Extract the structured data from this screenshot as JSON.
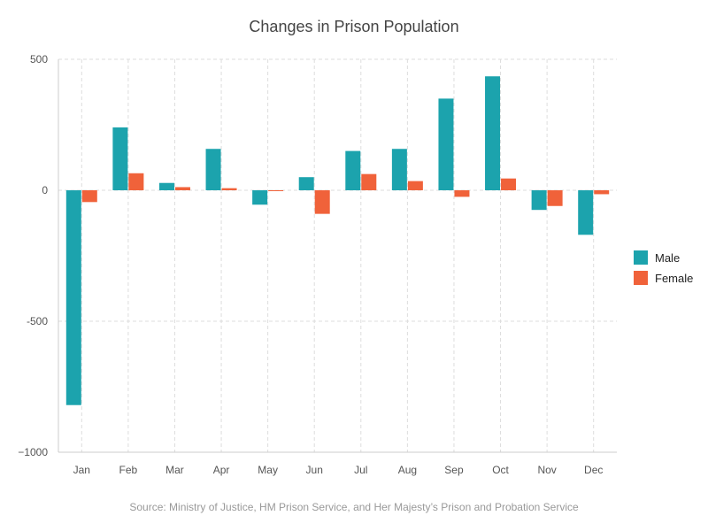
{
  "chart_data": {
    "type": "bar",
    "title": "Changes in Prison Population",
    "categories": [
      "Jan",
      "Feb",
      "Mar",
      "Apr",
      "May",
      "Jun",
      "Jul",
      "Aug",
      "Sep",
      "Oct",
      "Nov",
      "Dec"
    ],
    "series": [
      {
        "name": "Male",
        "color": "#1ca3ad",
        "values": [
          -820,
          240,
          28,
          158,
          -55,
          50,
          150,
          158,
          350,
          435,
          -75,
          -170
        ]
      },
      {
        "name": "Female",
        "color": "#f0623a",
        "values": [
          -45,
          65,
          12,
          8,
          -3,
          -90,
          62,
          35,
          -25,
          45,
          -60,
          -15
        ]
      }
    ],
    "ylim": [
      -1000,
      500
    ],
    "yticks": [
      500,
      0,
      -500,
      -1000
    ],
    "ytick_labels": [
      "500",
      "0",
      "-500",
      "−1000"
    ],
    "grid": true,
    "legend_position": "right",
    "source": "Source: Ministry of Justice, HM Prison Service, and Her Majesty’s Prison and Probation Service"
  }
}
